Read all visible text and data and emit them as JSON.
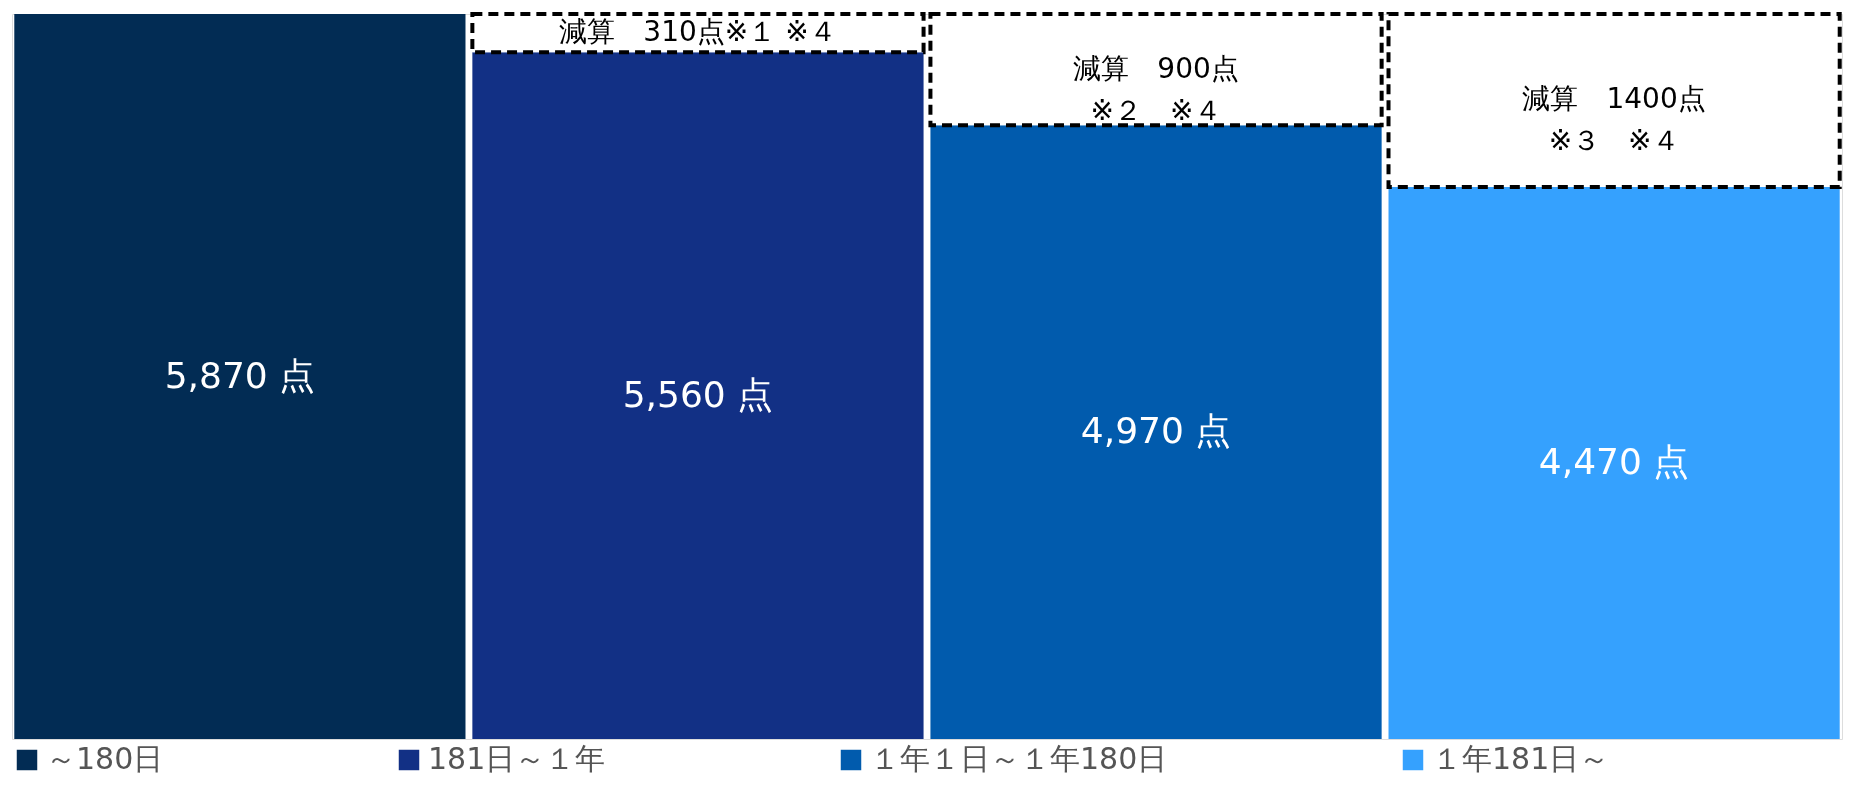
{
  "chart_data": {
    "type": "bar",
    "stacked": true,
    "categories": [
      null,
      null,
      null,
      null
    ],
    "ylim": [
      0,
      5870
    ],
    "tick_labels": false,
    "legend": "bottom",
    "series": [
      {
        "name": "～180日",
        "color": "#022c54",
        "values": [
          5870,
          null,
          null,
          null
        ],
        "value_labels": [
          "5,870 点",
          null,
          null,
          null
        ]
      },
      {
        "name": "181日～１年",
        "color": "#123085",
        "values": [
          null,
          5560,
          null,
          null
        ],
        "value_labels": [
          null,
          "5,560 点",
          null,
          null
        ]
      },
      {
        "name": "１年１日～１年180日",
        "color": "#015bad",
        "values": [
          null,
          null,
          4970,
          null
        ],
        "value_labels": [
          null,
          null,
          "4,970 点",
          null
        ]
      },
      {
        "name": "１年181日～",
        "color": "#35a1fe",
        "values": [
          null,
          null,
          null,
          4470
        ],
        "value_labels": [
          null,
          null,
          null,
          "4,470 点"
        ]
      },
      {
        "color": "#ffffff",
        "line_style": "dashed",
        "values": [
          null,
          310,
          900,
          1400
        ],
        "value_labels": [
          null,
          "減算　310点※１ ※４",
          "減算　900点\n※２　※４",
          "減算　1400点\n※３　※４"
        ]
      }
    ]
  }
}
